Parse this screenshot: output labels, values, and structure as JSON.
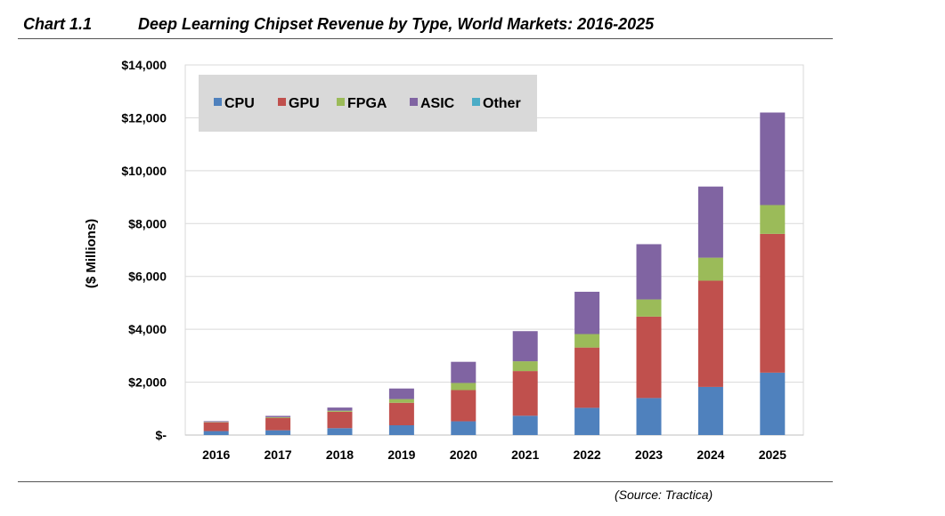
{
  "header": {
    "chart_label": "Chart 1.1",
    "title": "Deep Learning Chipset Revenue by Type, World Markets: 2016-2025"
  },
  "footer": {
    "source": "(Source: Tractica)"
  },
  "chart_data": {
    "type": "bar",
    "stacked": true,
    "title": "Deep Learning Chipset Revenue by Type, World Markets: 2016-2025",
    "xlabel": "",
    "ylabel": "($ Millions)",
    "categories": [
      "2016",
      "2017",
      "2018",
      "2019",
      "2020",
      "2021",
      "2022",
      "2023",
      "2024",
      "2025"
    ],
    "ylim": [
      0,
      14000
    ],
    "yticks": [
      0,
      2000,
      4000,
      6000,
      8000,
      10000,
      12000,
      14000
    ],
    "ytick_labels": [
      "$-",
      "$2,000",
      "$4,000",
      "$6,000",
      "$8,000",
      "$10,000",
      "$12,000",
      "$14,000"
    ],
    "grid": true,
    "legend_position": "top-left",
    "series": [
      {
        "name": "CPU",
        "color": "#4f81bd",
        "values": [
          150,
          180,
          260,
          370,
          520,
          730,
          1030,
          1400,
          1820,
          2360
        ]
      },
      {
        "name": "GPU",
        "color": "#c0504d",
        "values": [
          330,
          470,
          620,
          850,
          1180,
          1690,
          2280,
          3080,
          4020,
          5250
        ]
      },
      {
        "name": "FPGA",
        "color": "#9bbb59",
        "values": [
          15,
          25,
          40,
          140,
          270,
          370,
          510,
          650,
          870,
          1090
        ]
      },
      {
        "name": "ASIC",
        "color": "#8064a2",
        "values": [
          30,
          50,
          120,
          400,
          800,
          1140,
          1600,
          2090,
          2690,
          3500
        ]
      },
      {
        "name": "Other",
        "color": "#4bacc6",
        "values": [
          0,
          0,
          0,
          0,
          0,
          0,
          0,
          0,
          0,
          0
        ]
      }
    ]
  }
}
